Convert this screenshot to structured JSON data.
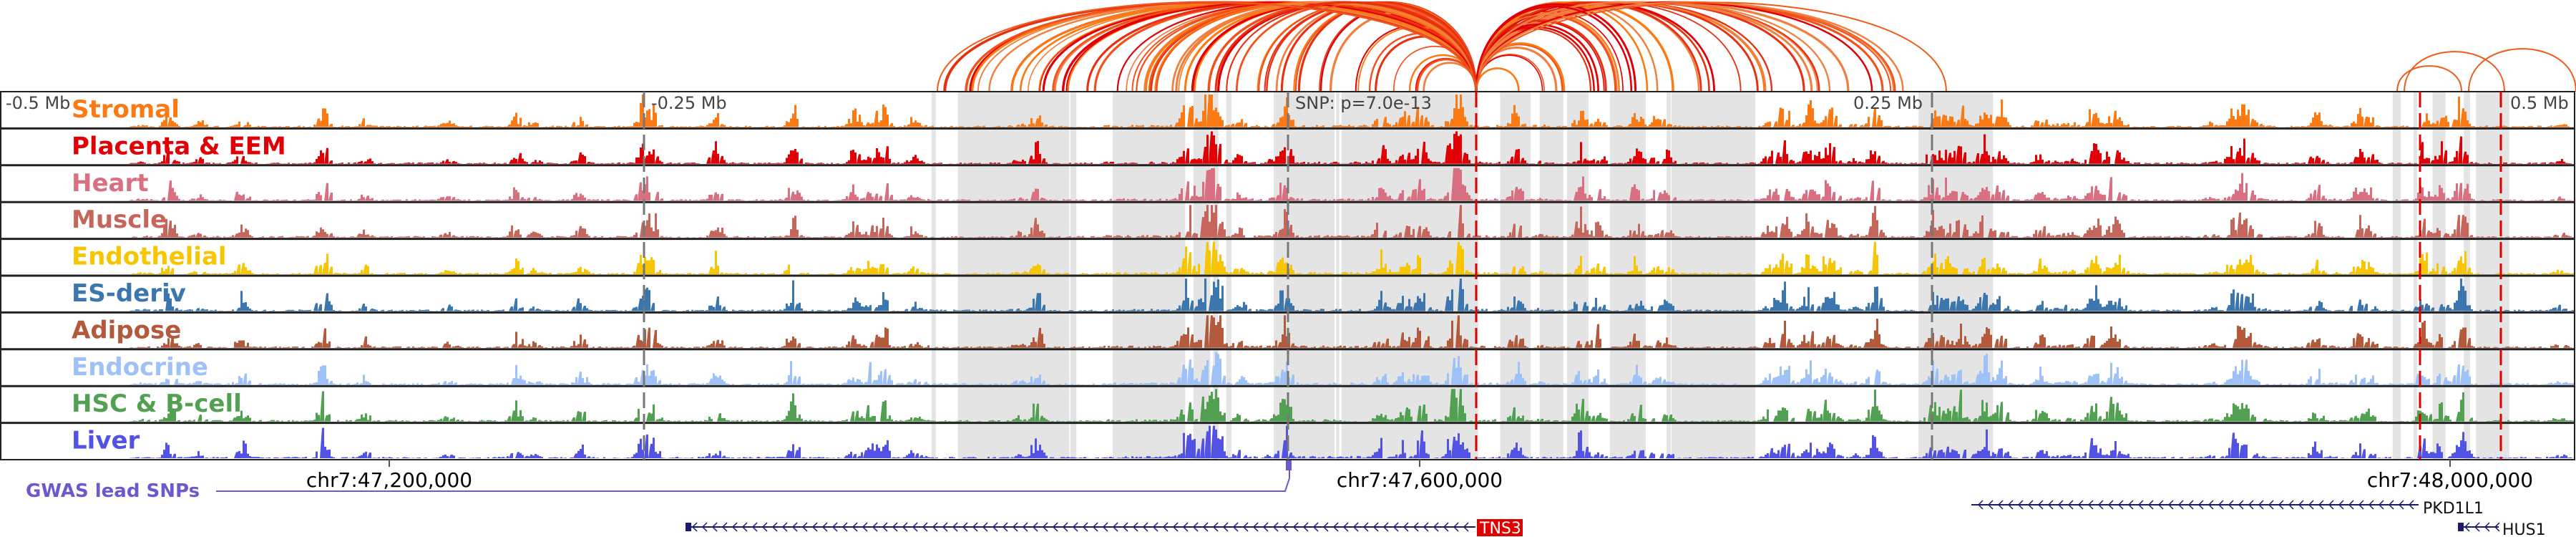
{
  "ruler": {
    "left": "-0.5 Mb",
    "left_mid": "-0.25 Mb",
    "snp": "SNP: p=7.0e-13",
    "right_mid": "0.25 Mb",
    "right": "0.5 Mb"
  },
  "tracks": [
    {
      "label": "Stromal",
      "color": "#fb7a14"
    },
    {
      "label": "Placenta & EEM",
      "color": "#e00006"
    },
    {
      "label": "Heart",
      "color": "#d97082"
    },
    {
      "label": "Muscle",
      "color": "#c5655c"
    },
    {
      "label": "Endothelial",
      "color": "#f7c600"
    },
    {
      "label": "ES-deriv",
      "color": "#3b77ae"
    },
    {
      "label": "Adipose",
      "color": "#b35a3c"
    },
    {
      "label": "Endocrine",
      "color": "#9ec2f8"
    },
    {
      "label": "HSC & B-cell",
      "color": "#52a152"
    },
    {
      "label": "Liver",
      "color": "#5252e4"
    }
  ],
  "coordinates": [
    "chr7:47,200,000",
    "chr7:47,600,000",
    "chr7:48,000,000"
  ],
  "gwas": {
    "label": "GWAS lead SNPs",
    "color": "#6a5acd"
  },
  "genes": [
    {
      "name": "TNS3",
      "highlight": "#e00000"
    },
    {
      "name": "PKD1L1"
    },
    {
      "name": "HUS1"
    }
  ]
}
